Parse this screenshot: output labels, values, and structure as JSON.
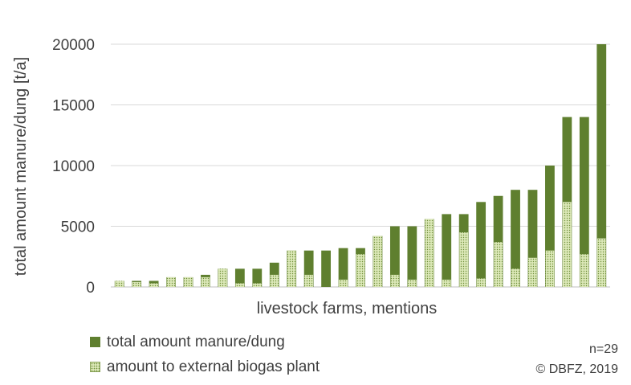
{
  "chart_data": {
    "type": "bar",
    "stacked": false,
    "xlabel": "livestock farms, mentions",
    "ylabel": "total amount manure/dung [t/a]",
    "ylim": [
      0,
      20000
    ],
    "yticks": [
      "0",
      "5000",
      "10000",
      "15000",
      "20000"
    ],
    "grid": true,
    "legend_position": "bottom-left",
    "series": [
      {
        "name": "total amount manure/dung",
        "color": "#5f7f2f",
        "values": [
          500,
          500,
          500,
          800,
          800,
          1000,
          1500,
          1500,
          1500,
          2000,
          3000,
          3000,
          3000,
          3200,
          3200,
          4200,
          5000,
          5000,
          5600,
          6000,
          6000,
          7000,
          7500,
          8000,
          8000,
          10000,
          14000,
          14000,
          20000
        ]
      },
      {
        "name": "amount to external biogas plant",
        "color": "#dce8b8",
        "values": [
          500,
          400,
          300,
          800,
          800,
          800,
          1500,
          300,
          300,
          1000,
          3000,
          1000,
          0,
          600,
          2700,
          4200,
          1000,
          600,
          5600,
          600,
          4500,
          700,
          3700,
          1500,
          2400,
          3000,
          7000,
          2700,
          4000
        ]
      }
    ]
  },
  "legend": {
    "total_label": "total amount manure/dung",
    "biogas_label": "amount to external biogas plant"
  },
  "notes": {
    "n": "n=29",
    "copyright": "© DBFZ, 2019"
  }
}
